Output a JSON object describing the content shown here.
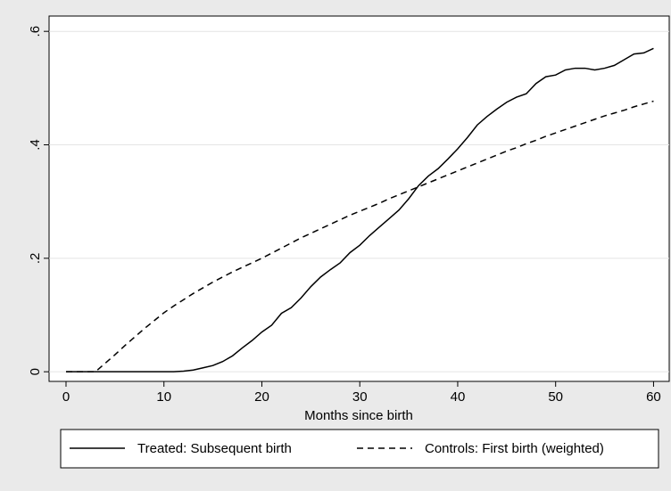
{
  "chart_data": {
    "type": "line",
    "x_label": "Months since birth",
    "x": [
      0,
      1,
      2,
      3,
      4,
      5,
      6,
      7,
      8,
      9,
      10,
      11,
      12,
      13,
      14,
      15,
      16,
      17,
      18,
      19,
      20,
      21,
      22,
      23,
      24,
      25,
      26,
      27,
      28,
      29,
      30,
      31,
      32,
      33,
      34,
      35,
      36,
      37,
      38,
      39,
      40,
      41,
      42,
      43,
      44,
      45,
      46,
      47,
      48,
      49,
      50,
      51,
      52,
      53,
      54,
      55,
      56,
      57,
      58,
      59,
      60
    ],
    "series": [
      {
        "name": "Treated: Subsequent birth",
        "color": "#000000",
        "line_style": "solid",
        "values": [
          0,
          0,
          0,
          0,
          0,
          0,
          0,
          0,
          0,
          0,
          0,
          0,
          0.001,
          0.003,
          0.007,
          0.011,
          0.018,
          0.028,
          0.042,
          0.055,
          0.07,
          0.082,
          0.103,
          0.113,
          0.13,
          0.15,
          0.167,
          0.18,
          0.192,
          0.21,
          0.223,
          0.24,
          0.255,
          0.27,
          0.285,
          0.305,
          0.328,
          0.345,
          0.358,
          0.375,
          0.393,
          0.413,
          0.435,
          0.45,
          0.463,
          0.475,
          0.484,
          0.49,
          0.508,
          0.52,
          0.523,
          0.532,
          0.535,
          0.535,
          0.532,
          0.535,
          0.54,
          0.55,
          0.56,
          0.562,
          0.57
        ]
      },
      {
        "name": "Controls: First birth (weighted)",
        "color": "#000000",
        "line_style": "dash",
        "values": [
          0,
          0,
          0,
          0,
          0.015,
          0.03,
          0.046,
          0.061,
          0.076,
          0.09,
          0.104,
          0.116,
          0.127,
          0.138,
          0.148,
          0.158,
          0.167,
          0.176,
          0.184,
          0.192,
          0.2,
          0.209,
          0.218,
          0.227,
          0.236,
          0.244,
          0.252,
          0.26,
          0.268,
          0.276,
          0.283,
          0.29,
          0.297,
          0.305,
          0.312,
          0.319,
          0.326,
          0.333,
          0.34,
          0.347,
          0.354,
          0.361,
          0.368,
          0.375,
          0.382,
          0.389,
          0.395,
          0.402,
          0.408,
          0.415,
          0.421,
          0.427,
          0.433,
          0.439,
          0.445,
          0.451,
          0.456,
          0.461,
          0.467,
          0.472,
          0.477
        ]
      }
    ],
    "xlim": [
      -1.73,
      61.6
    ],
    "ylim": [
      -0.017,
      0.627
    ],
    "xticks": [
      0,
      10,
      20,
      30,
      40,
      50,
      60
    ],
    "yticks": [
      0,
      {
        "value": 0.2,
        "label": ".2"
      },
      {
        "value": 0.4,
        "label": ".4"
      },
      {
        "value": 0.6,
        "label": ".6"
      }
    ],
    "grid": true,
    "legend_position": "bottom"
  }
}
